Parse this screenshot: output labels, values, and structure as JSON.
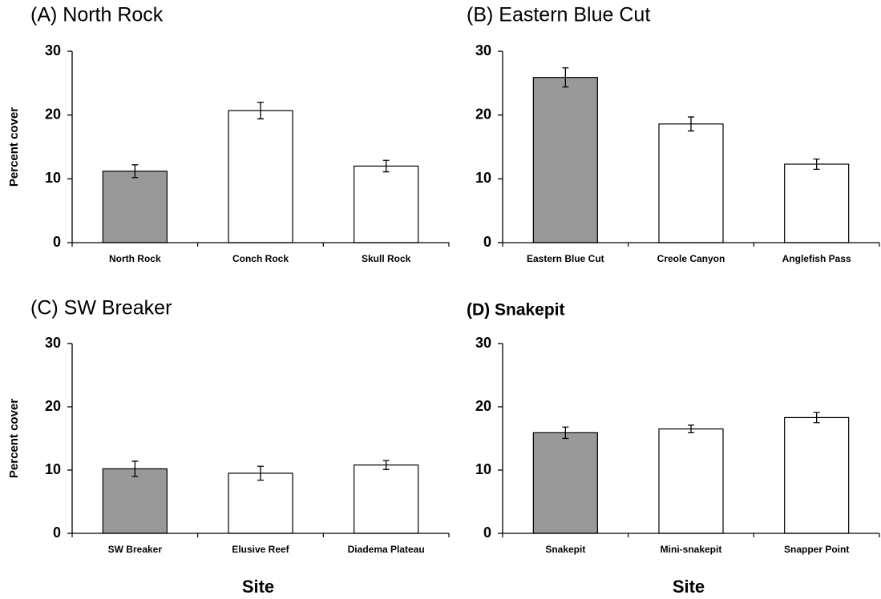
{
  "chart_data": [
    {
      "type": "bar",
      "title": "(A)  North Rock",
      "ylabel": "Percent cover",
      "categories": [
        "North Rock",
        "Conch Rock",
        "Skull Rock"
      ],
      "values": [
        11.2,
        20.7,
        12.0
      ],
      "errors": [
        1.0,
        1.3,
        0.9
      ],
      "colors": [
        "#999999",
        "#ffffff",
        "#ffffff"
      ],
      "ylim": [
        0,
        30
      ],
      "yticks": [
        0,
        10,
        20,
        30
      ]
    },
    {
      "type": "bar",
      "title": "(B)  Eastern Blue Cut",
      "categories": [
        "Eastern Blue Cut",
        "Creole Canyon",
        "Anglefish Pass"
      ],
      "values": [
        25.9,
        18.6,
        12.3
      ],
      "errors": [
        1.5,
        1.1,
        0.8
      ],
      "colors": [
        "#999999",
        "#ffffff",
        "#ffffff"
      ],
      "ylim": [
        0,
        30
      ],
      "yticks": [
        0,
        10,
        20,
        30
      ]
    },
    {
      "type": "bar",
      "title": "(C)  SW Breaker",
      "ylabel": "Percent cover",
      "xlabel": "Site",
      "categories": [
        "SW Breaker",
        "Elusive Reef",
        "Diadema Plateau"
      ],
      "values": [
        10.2,
        9.5,
        10.8
      ],
      "errors": [
        1.2,
        1.1,
        0.7
      ],
      "colors": [
        "#999999",
        "#ffffff",
        "#ffffff"
      ],
      "ylim": [
        0,
        30
      ],
      "yticks": [
        0,
        10,
        20,
        30
      ]
    },
    {
      "type": "bar",
      "title": "(D) Snakepit",
      "xlabel": "Site",
      "categories": [
        "Snakepit",
        "Mini-snakepit",
        "Snapper Point"
      ],
      "values": [
        15.9,
        16.5,
        18.3
      ],
      "errors": [
        0.9,
        0.6,
        0.8
      ],
      "colors": [
        "#999999",
        "#ffffff",
        "#ffffff"
      ],
      "ylim": [
        0,
        30
      ],
      "yticks": [
        0,
        10,
        20,
        30
      ]
    }
  ]
}
